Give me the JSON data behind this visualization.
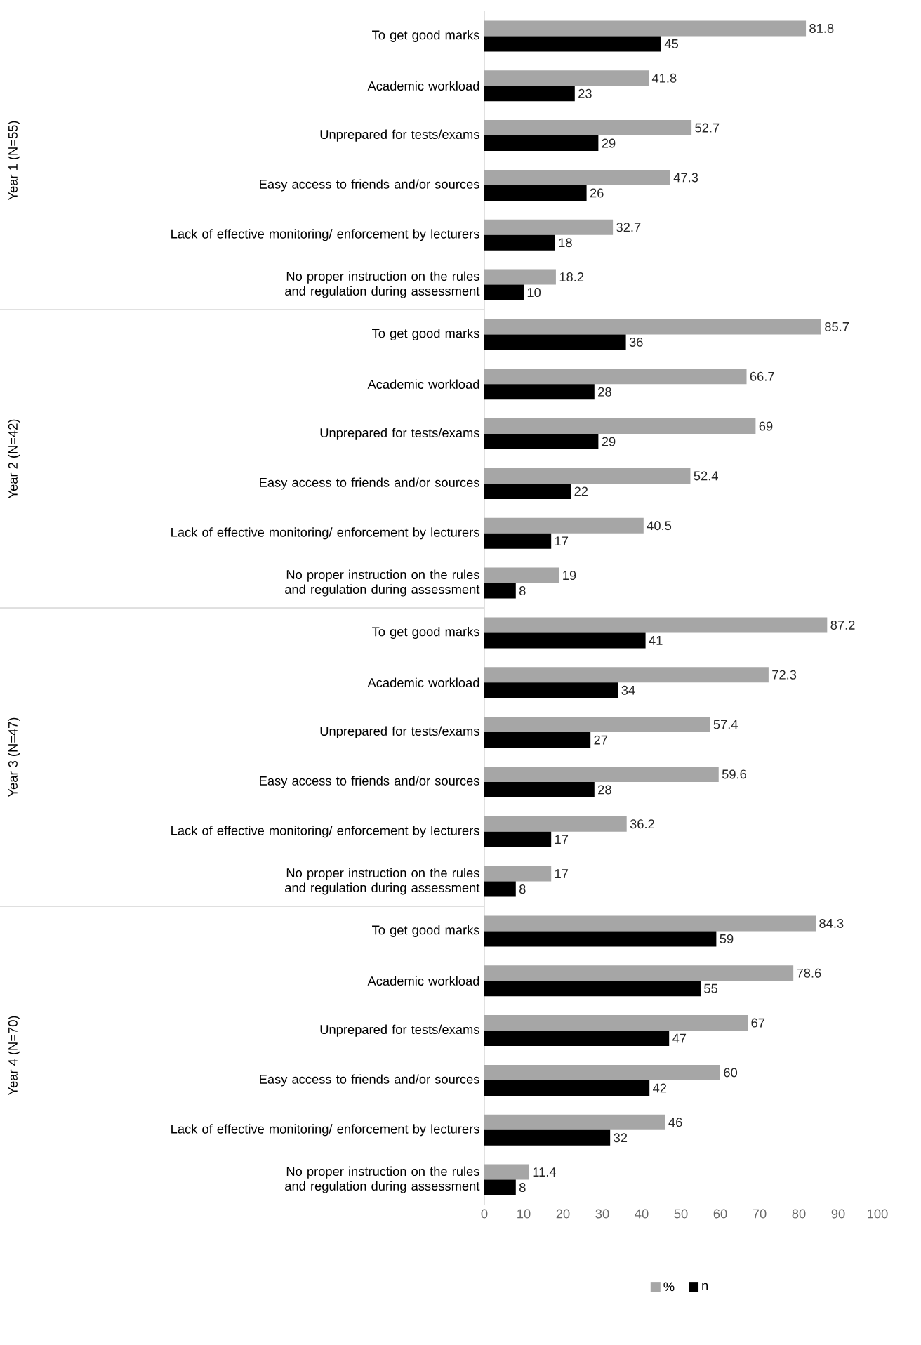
{
  "chart_data": {
    "type": "bar",
    "orientation": "horizontal",
    "categories": [
      "To get good marks",
      "Academic workload",
      "Unprepared for tests/exams",
      "Easy access to friends and/or sources",
      "Lack of effective monitoring/ enforcement by lecturers",
      "No proper instruction on the rules and regulation during assessment",
      "To get good marks",
      "Academic workload",
      "Unprepared for tests/exams",
      "Easy access to friends and/or sources",
      "Lack of effective monitoring/ enforcement by lecturers",
      "No proper instruction on the rules and regulation during assessment",
      "To get good marks",
      "Academic workload",
      "Unprepared for tests/exams",
      "Easy access to friends and/or sources",
      "Lack of effective monitoring/ enforcement by lecturers",
      "No proper instruction on the rules and regulation during assessment",
      "To get good marks",
      "Academic workload",
      "Unprepared for tests/exams",
      "Easy access to friends and/or sources",
      "Lack of effective monitoring/ enforcement by lecturers",
      "No proper instruction on the rules and regulation during assessment"
    ],
    "series": [
      {
        "name": "%",
        "color": "#a6a6a6",
        "values": [
          81.8,
          41.8,
          52.7,
          47.3,
          32.7,
          18.2,
          85.7,
          66.7,
          69,
          52.4,
          40.5,
          19,
          87.2,
          72.3,
          57.4,
          59.6,
          36.2,
          17,
          84.3,
          78.6,
          67,
          60,
          46,
          11.4
        ]
      },
      {
        "name": "n",
        "color": "#000000",
        "values": [
          45,
          23,
          29,
          26,
          18,
          10,
          36,
          28,
          29,
          22,
          17,
          8,
          41,
          34,
          27,
          28,
          17,
          8,
          59,
          55,
          47,
          42,
          32,
          8
        ]
      }
    ],
    "annotations": [
      "Year 1 (N=55)",
      "Year 2 (N=42)",
      "Year 3 (N=47)",
      "Year 4 (N=70)"
    ],
    "xlim": [
      0,
      100
    ],
    "xticks": [
      0,
      10,
      20,
      30,
      40,
      50,
      60,
      70,
      80,
      90,
      100
    ],
    "data_labels": true,
    "legend": "bottom",
    "grid": false
  }
}
